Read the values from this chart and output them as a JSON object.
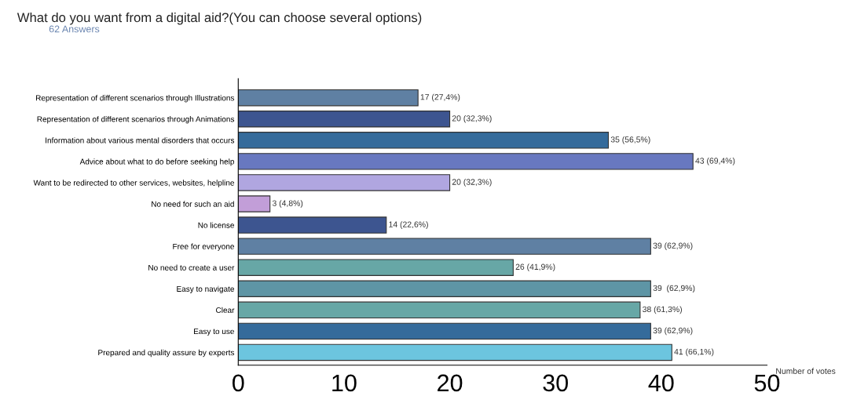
{
  "chart_data": {
    "type": "bar",
    "orientation": "horizontal",
    "title": "What do you want from a digital aid?(You can choose several options)",
    "subtitle": "62 Answers",
    "xlabel": "Number of votes",
    "categories": [
      "Representation of different scenarios through Illustrations",
      "Representation of different scenarios through Animations",
      "Information about various mental disorders that occurs",
      "Advice about what to do before seeking help",
      "Want to be redirected to other services, websites, helpline",
      "No need for such an aid",
      "No license",
      "Free for everyone",
      "No need to create a user",
      "Easy to navigate",
      "Clear",
      "Easy to use",
      "Prepared and quality assure by experts"
    ],
    "values": [
      17,
      20,
      35,
      43,
      20,
      3,
      14,
      39,
      26,
      39,
      38,
      39,
      41
    ],
    "colors": [
      "#5f80a3",
      "#3d5590",
      "#356b9b",
      "#6878c0",
      "#b0a6e0",
      "#c29ed8",
      "#3d5590",
      "#5f80a3",
      "#67a7a6",
      "#5e95a5",
      "#67a7a6",
      "#356b9b",
      "#6cc5df"
    ],
    "value_labels": [
      "17 (27,4%)",
      "20 (32,3%)",
      "35 (56,5%)",
      "43 (69,4%)",
      "20 (32,3%)",
      "3 (4,8%)",
      "14 (22,6%)",
      "39 (62,9%)",
      "26 (41,9%)",
      "39  (62,9%)",
      "38 (61,3%)",
      "39 (62,9%)",
      "41 (66,1%)"
    ],
    "xlim": [
      0,
      50
    ],
    "xticks": [
      0,
      10,
      20,
      30,
      40,
      50
    ],
    "grid": false,
    "legend": false
  }
}
